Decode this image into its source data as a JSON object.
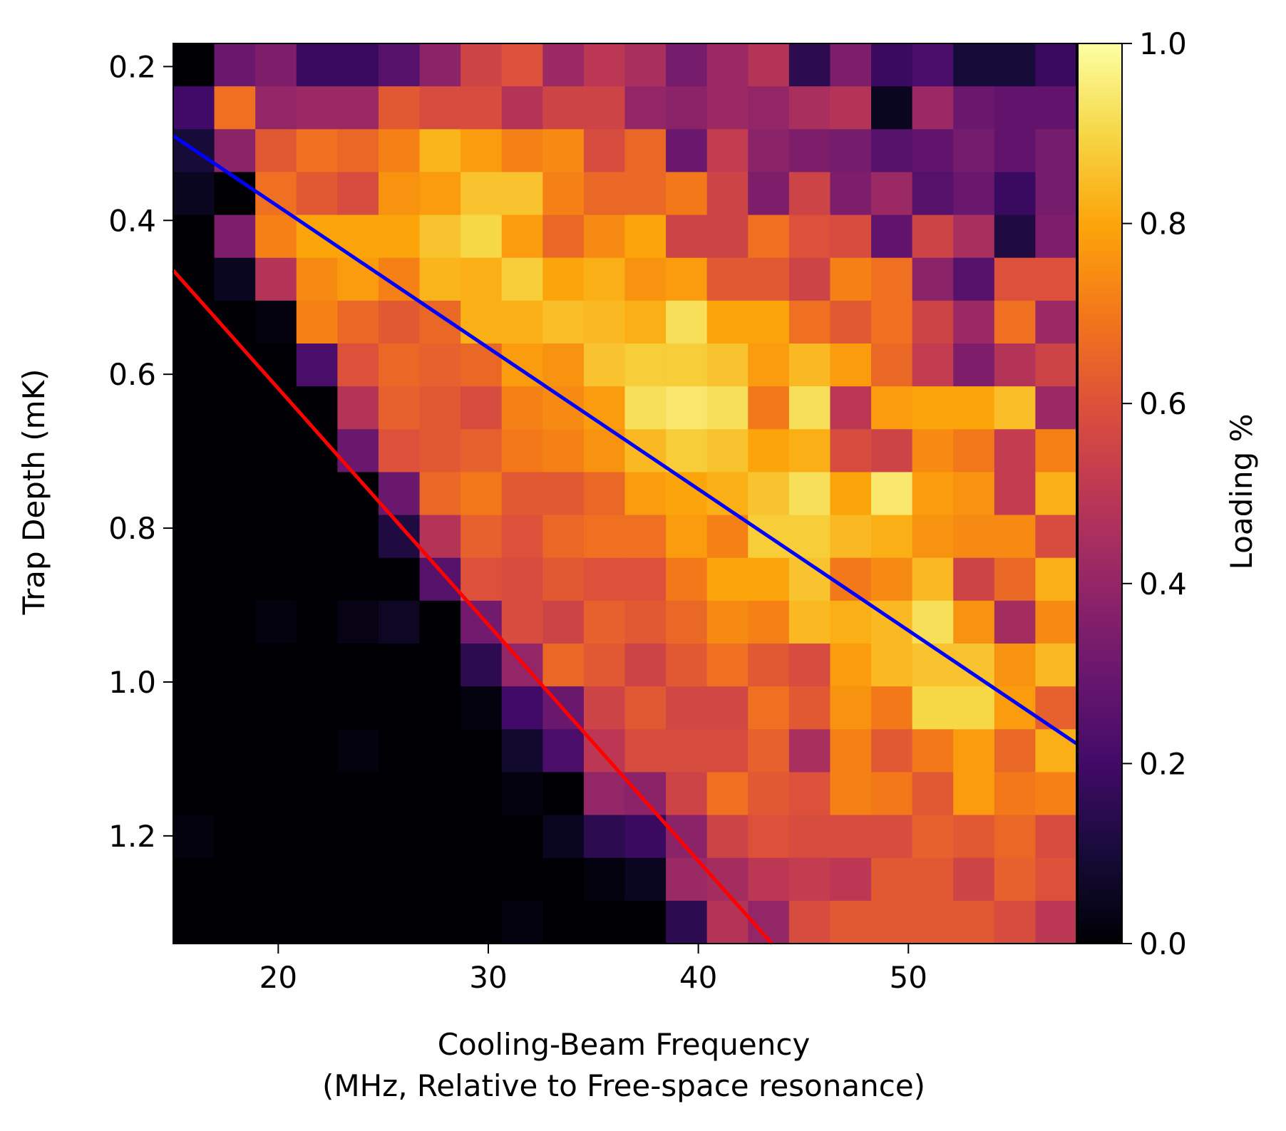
{
  "chart_data": {
    "type": "heatmap",
    "title": "",
    "xlabel_line1": "Cooling-Beam Frequency",
    "xlabel_line2": "(MHz, Relative to Free-space resonance)",
    "ylabel": "Trap Depth (mK)",
    "xlim": [
      15,
      58
    ],
    "ylim": [
      1.34,
      0.17
    ],
    "x_ticks": [
      20,
      30,
      40,
      50
    ],
    "x_tick_labels": [
      "20",
      "30",
      "40",
      "50"
    ],
    "y_ticks": [
      0.2,
      0.4,
      0.6,
      0.8,
      1.0,
      1.2
    ],
    "y_tick_labels": [
      "0.2",
      "0.4",
      "0.6",
      "0.8",
      "1.0",
      "1.2"
    ],
    "colorbar": {
      "label": "Loading %",
      "colormap": "inferno",
      "range": [
        0.0,
        1.0
      ],
      "ticks": [
        0.0,
        0.2,
        0.4,
        0.6,
        0.8,
        1.0
      ],
      "tick_labels": [
        "0.0",
        "0.2",
        "0.4",
        "0.6",
        "0.8",
        "1.0"
      ]
    },
    "cols": 22,
    "rows": 21,
    "grid": [
      [
        0.0,
        0.3,
        0.35,
        0.18,
        0.18,
        0.25,
        0.38,
        0.55,
        0.6,
        0.42,
        0.5,
        0.45,
        0.33,
        0.42,
        0.48,
        0.15,
        0.35,
        0.18,
        0.22,
        0.1,
        0.1,
        0.18
      ],
      [
        0.2,
        0.68,
        0.4,
        0.42,
        0.42,
        0.62,
        0.58,
        0.58,
        0.48,
        0.55,
        0.55,
        0.4,
        0.38,
        0.42,
        0.4,
        0.45,
        0.48,
        0.05,
        0.42,
        0.3,
        0.28,
        0.28
      ],
      [
        0.1,
        0.38,
        0.62,
        0.68,
        0.66,
        0.72,
        0.83,
        0.78,
        0.72,
        0.74,
        0.58,
        0.66,
        0.3,
        0.52,
        0.38,
        0.35,
        0.33,
        0.25,
        0.28,
        0.33,
        0.28,
        0.33
      ],
      [
        0.05,
        0.0,
        0.68,
        0.62,
        0.58,
        0.76,
        0.78,
        0.86,
        0.86,
        0.72,
        0.66,
        0.66,
        0.7,
        0.55,
        0.35,
        0.55,
        0.35,
        0.42,
        0.25,
        0.3,
        0.18,
        0.33
      ],
      [
        0.0,
        0.35,
        0.72,
        0.8,
        0.8,
        0.8,
        0.86,
        0.9,
        0.78,
        0.66,
        0.74,
        0.8,
        0.55,
        0.55,
        0.68,
        0.6,
        0.58,
        0.28,
        0.55,
        0.45,
        0.12,
        0.35
      ],
      [
        0.0,
        0.05,
        0.48,
        0.74,
        0.78,
        0.72,
        0.83,
        0.82,
        0.88,
        0.8,
        0.82,
        0.76,
        0.78,
        0.62,
        0.62,
        0.55,
        0.72,
        0.68,
        0.38,
        0.25,
        0.6,
        0.6
      ],
      [
        0.0,
        0.0,
        0.02,
        0.72,
        0.66,
        0.62,
        0.66,
        0.82,
        0.82,
        0.85,
        0.84,
        0.82,
        0.92,
        0.8,
        0.8,
        0.68,
        0.62,
        0.68,
        0.55,
        0.42,
        0.68,
        0.42
      ],
      [
        0.0,
        0.0,
        0.0,
        0.22,
        0.6,
        0.66,
        0.64,
        0.66,
        0.78,
        0.76,
        0.86,
        0.88,
        0.88,
        0.86,
        0.78,
        0.84,
        0.78,
        0.66,
        0.52,
        0.35,
        0.48,
        0.55
      ],
      [
        0.0,
        0.0,
        0.0,
        0.0,
        0.48,
        0.64,
        0.62,
        0.58,
        0.72,
        0.74,
        0.78,
        0.92,
        0.94,
        0.92,
        0.7,
        0.92,
        0.5,
        0.78,
        0.8,
        0.8,
        0.85,
        0.42
      ],
      [
        0.0,
        0.0,
        0.0,
        0.0,
        0.3,
        0.6,
        0.62,
        0.64,
        0.7,
        0.72,
        0.76,
        0.84,
        0.88,
        0.86,
        0.8,
        0.82,
        0.58,
        0.55,
        0.74,
        0.7,
        0.52,
        0.72
      ],
      [
        0.0,
        0.0,
        0.0,
        0.0,
        0.0,
        0.3,
        0.66,
        0.7,
        0.62,
        0.62,
        0.66,
        0.78,
        0.8,
        0.82,
        0.86,
        0.92,
        0.8,
        0.94,
        0.78,
        0.76,
        0.52,
        0.82
      ],
      [
        0.0,
        0.0,
        0.0,
        0.0,
        0.0,
        0.12,
        0.48,
        0.64,
        0.6,
        0.66,
        0.68,
        0.68,
        0.78,
        0.72,
        0.88,
        0.88,
        0.84,
        0.82,
        0.76,
        0.74,
        0.74,
        0.58
      ],
      [
        0.0,
        0.0,
        0.0,
        0.0,
        0.0,
        0.0,
        0.25,
        0.6,
        0.58,
        0.62,
        0.6,
        0.6,
        0.7,
        0.8,
        0.8,
        0.86,
        0.7,
        0.74,
        0.84,
        0.55,
        0.66,
        0.82
      ],
      [
        0.0,
        0.0,
        0.02,
        0.0,
        0.03,
        0.06,
        0.0,
        0.32,
        0.58,
        0.55,
        0.64,
        0.62,
        0.66,
        0.74,
        0.72,
        0.84,
        0.82,
        0.84,
        0.92,
        0.76,
        0.44,
        0.74
      ],
      [
        0.0,
        0.0,
        0.0,
        0.0,
        0.0,
        0.0,
        0.0,
        0.15,
        0.4,
        0.66,
        0.62,
        0.55,
        0.62,
        0.68,
        0.62,
        0.58,
        0.78,
        0.84,
        0.86,
        0.86,
        0.76,
        0.84
      ],
      [
        0.0,
        0.0,
        0.0,
        0.0,
        0.0,
        0.0,
        0.0,
        0.02,
        0.2,
        0.3,
        0.55,
        0.62,
        0.56,
        0.56,
        0.68,
        0.62,
        0.76,
        0.7,
        0.9,
        0.9,
        0.78,
        0.64
      ],
      [
        0.0,
        0.0,
        0.0,
        0.0,
        0.02,
        0.0,
        0.0,
        0.0,
        0.08,
        0.22,
        0.5,
        0.58,
        0.58,
        0.58,
        0.64,
        0.45,
        0.72,
        0.62,
        0.7,
        0.78,
        0.66,
        0.82
      ],
      [
        0.0,
        0.0,
        0.0,
        0.0,
        0.0,
        0.0,
        0.0,
        0.0,
        0.02,
        0.0,
        0.4,
        0.38,
        0.55,
        0.68,
        0.62,
        0.6,
        0.72,
        0.7,
        0.62,
        0.78,
        0.7,
        0.72
      ],
      [
        0.02,
        0.0,
        0.0,
        0.0,
        0.0,
        0.0,
        0.0,
        0.0,
        0.0,
        0.05,
        0.15,
        0.18,
        0.38,
        0.55,
        0.6,
        0.58,
        0.58,
        0.58,
        0.64,
        0.62,
        0.66,
        0.58
      ],
      [
        0.0,
        0.0,
        0.0,
        0.0,
        0.0,
        0.0,
        0.0,
        0.0,
        0.0,
        0.0,
        0.02,
        0.05,
        0.42,
        0.44,
        0.5,
        0.52,
        0.5,
        0.62,
        0.62,
        0.55,
        0.64,
        0.6
      ],
      [
        0.0,
        0.0,
        0.0,
        0.0,
        0.0,
        0.0,
        0.0,
        0.0,
        0.02,
        0.0,
        0.0,
        0.0,
        0.15,
        0.48,
        0.4,
        0.58,
        0.62,
        0.62,
        0.62,
        0.62,
        0.58,
        0.5
      ]
    ],
    "series": [
      {
        "name": "",
        "color": "#0000ff",
        "x": [
          15,
          58
        ],
        "y": [
          0.29,
          1.08
        ]
      },
      {
        "name": "",
        "color": "#ff0000",
        "x": [
          15,
          43.5
        ],
        "y": [
          0.465,
          1.34
        ]
      }
    ]
  }
}
